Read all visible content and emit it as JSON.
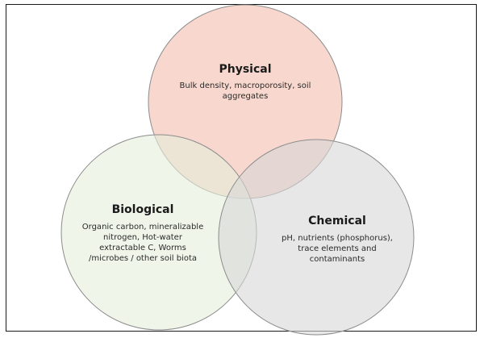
{
  "diagram": {
    "circles": [
      {
        "id": "physical",
        "title": "Physical",
        "description_lines": [
          "Bulk density, macroporosity, soil",
          "aggregates"
        ],
        "fill": "#f6cbbd",
        "stroke": "#8c8c8c"
      },
      {
        "id": "biological",
        "title": "Biological",
        "description_lines": [
          "Organic carbon, mineralizable",
          "nitrogen, Hot-water",
          "extractable C, Worms",
          "/microbes / other soil biota"
        ],
        "fill": "#e4eedb",
        "stroke": "#8c8c8c"
      },
      {
        "id": "chemical",
        "title": "Chemical",
        "description_lines": [
          "pH, nutrients (phosphorus),",
          "trace elements and",
          "contaminants"
        ],
        "fill": "#d7d7d7",
        "stroke": "#8c8c8c"
      }
    ],
    "frame_color": "#1a1a1a"
  }
}
